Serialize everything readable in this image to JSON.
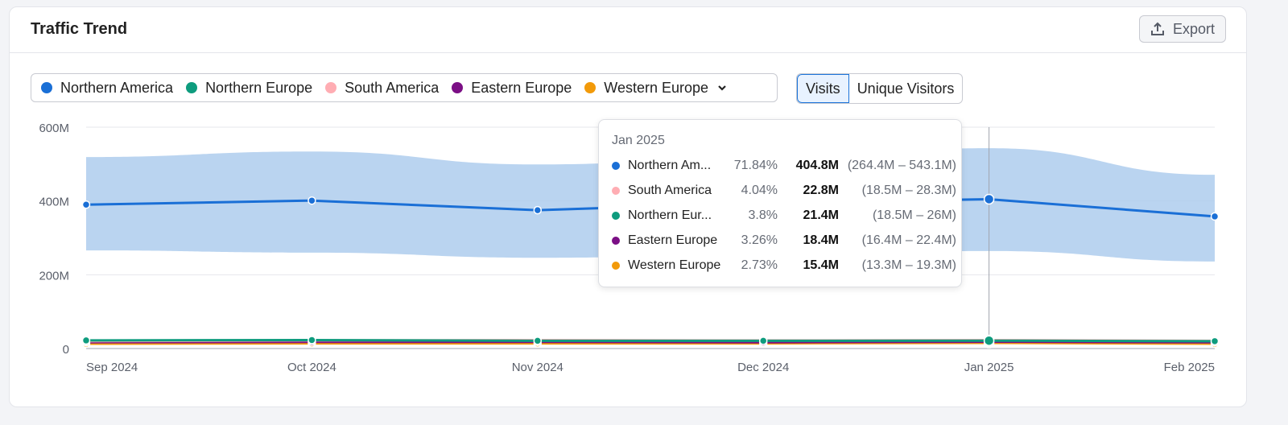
{
  "header": {
    "title": "Traffic Trend",
    "export_label": "Export"
  },
  "legend": [
    {
      "name": "Northern America",
      "color": "#1a6fd6"
    },
    {
      "name": "Northern Europe",
      "color": "#0e9c7e"
    },
    {
      "name": "South America",
      "color": "#ffadb3"
    },
    {
      "name": "Eastern Europe",
      "color": "#7b0f85"
    },
    {
      "name": "Western Europe",
      "color": "#f29a0a"
    }
  ],
  "toggle": {
    "options": [
      "Visits",
      "Unique Visitors"
    ],
    "selected": "Visits"
  },
  "chart_data": {
    "type": "line",
    "categories": [
      "Sep 2024",
      "Oct 2024",
      "Nov 2024",
      "Dec 2024",
      "Jan 2025",
      "Feb 2025"
    ],
    "ylim": [
      0,
      600
    ],
    "yticks": [
      "0",
      "200M",
      "400M",
      "600M"
    ],
    "grid": true,
    "series": [
      {
        "name": "Northern America",
        "color": "#1a6fd6",
        "values": [
          390,
          401,
          375,
          395,
          404.8,
          358
        ],
        "band_low": [
          266,
          260,
          246,
          255,
          264.4,
          236
        ],
        "band_high": [
          519,
          534,
          499,
          520,
          543.1,
          471
        ]
      },
      {
        "name": "Northern Europe",
        "color": "#0e9c7e",
        "values": [
          22,
          23,
          21,
          21,
          21.4,
          20
        ]
      },
      {
        "name": "South America",
        "color": "#ffadb3",
        "values": [
          20,
          22,
          23,
          22,
          22.8,
          21
        ]
      },
      {
        "name": "Eastern Europe",
        "color": "#7b0f85",
        "values": [
          17,
          18,
          18,
          17,
          18.4,
          17
        ]
      },
      {
        "name": "Western Europe",
        "color": "#f29a0a",
        "values": [
          13,
          14,
          14,
          14,
          15.4,
          13
        ]
      }
    ]
  },
  "tooltip": {
    "date": "Jan 2025",
    "rows": [
      {
        "name": "Northern Am...",
        "color": "#1a6fd6",
        "pct": "71.84%",
        "value": "404.8M",
        "range": "(264.4M – 543.1M)"
      },
      {
        "name": "South America",
        "color": "#ffadb3",
        "pct": "4.04%",
        "value": "22.8M",
        "range": "(18.5M – 28.3M)"
      },
      {
        "name": "Northern Eur...",
        "color": "#0e9c7e",
        "pct": "3.8%",
        "value": "21.4M",
        "range": "(18.5M – 26M)"
      },
      {
        "name": "Eastern Europe",
        "color": "#7b0f85",
        "pct": "3.26%",
        "value": "18.4M",
        "range": "(16.4M – 22.4M)"
      },
      {
        "name": "Western Europe",
        "color": "#f29a0a",
        "pct": "2.73%",
        "value": "15.4M",
        "range": "(13.3M – 19.3M)"
      }
    ]
  }
}
